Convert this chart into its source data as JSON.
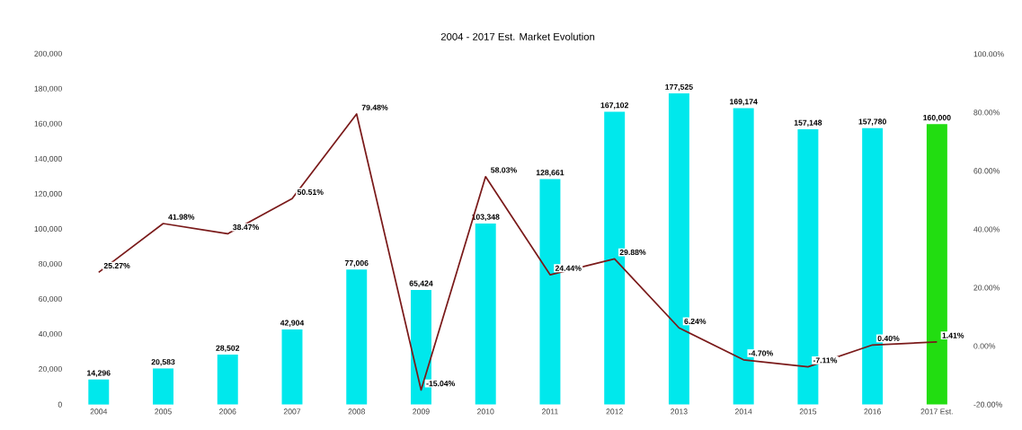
{
  "chart_data": {
    "type": "bar",
    "title": "2004 - 2017 Est. Market Evolution",
    "categories": [
      "2004",
      "2005",
      "2006",
      "2007",
      "2008",
      "2009",
      "2010",
      "2011",
      "2012",
      "2013",
      "2014",
      "2015",
      "2016",
      "2017 Est."
    ],
    "series": [
      {
        "colors": [
          "#00e8ec",
          "#00e8ec",
          "#00e8ec",
          "#00e8ec",
          "#00e8ec",
          "#00e8ec",
          "#00e8ec",
          "#00e8ec",
          "#00e8ec",
          "#00e8ec",
          "#00e8ec",
          "#00e8ec",
          "#00e8ec",
          "#22dd11"
        ],
        "values": [
          14296,
          20583,
          28502,
          42904,
          77006,
          65424,
          103348,
          128661,
          167102,
          177525,
          169174,
          157148,
          157780,
          160000
        ],
        "value_labels": [
          "14,296",
          "20,583",
          "28,502",
          "42,904",
          "77,006",
          "65,424",
          "103,348",
          "128,661",
          "167,102",
          "177,525",
          "169,174",
          "157,148",
          "157,780",
          "160,000"
        ]
      },
      {
        "type": "line",
        "axis": "y2",
        "color": "#7a1a1a",
        "values": [
          25.27,
          41.98,
          38.47,
          50.51,
          79.48,
          -15.04,
          58.03,
          24.44,
          29.88,
          6.24,
          -4.7,
          -7.11,
          0.4,
          1.41
        ],
        "value_labels": [
          "25.27%",
          "41.98%",
          "38.47%",
          "50.51%",
          "79.48%",
          "-15.04%",
          "58.03%",
          "24.44%",
          "29.88%",
          "6.24%",
          "-4.70%",
          "-7.11%",
          "0.40%",
          "1.41%"
        ]
      }
    ],
    "ylim": [
      0,
      200000
    ],
    "yticks": [
      {
        "value": 0,
        "label": "0"
      },
      {
        "value": 20000,
        "label": "20,000"
      },
      {
        "value": 40000,
        "label": "40,000"
      },
      {
        "value": 60000,
        "label": "60,000"
      },
      {
        "value": 80000,
        "label": "80,000"
      },
      {
        "value": 100000,
        "label": "100,000"
      },
      {
        "value": 120000,
        "label": "120,000"
      },
      {
        "value": 140000,
        "label": "140,000"
      },
      {
        "value": 160000,
        "label": "160,000"
      },
      {
        "value": 180000,
        "label": "180,000"
      },
      {
        "value": 200000,
        "label": "200,000"
      }
    ],
    "y2lim": [
      -20,
      100
    ],
    "y2ticks": [
      {
        "value": -20,
        "label": "-20.00%"
      },
      {
        "value": 0,
        "label": "0.00%"
      },
      {
        "value": 20,
        "label": "20.00%"
      },
      {
        "value": 40,
        "label": "40.00%"
      },
      {
        "value": 60,
        "label": "60.00%"
      },
      {
        "value": 80,
        "label": "80.00%"
      },
      {
        "value": 100,
        "label": "100.00%"
      }
    ]
  }
}
